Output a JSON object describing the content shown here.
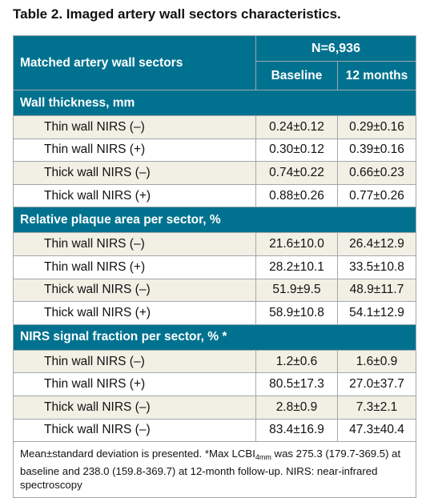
{
  "title": "Table 2. Imaged artery wall sectors characteristics.",
  "header": {
    "row_label": "Matched artery wall sectors",
    "n_label": "N=6,936",
    "col_baseline": "Baseline",
    "col_12m": "12 months"
  },
  "sections": [
    {
      "title": "Wall thickness, mm",
      "rows": [
        {
          "label": "Thin wall NIRS (–)",
          "baseline": "0.24±0.12",
          "m12": "0.29±0.16"
        },
        {
          "label": "Thin wall NIRS (+)",
          "baseline": "0.30±0.12",
          "m12": "0.39±0.16"
        },
        {
          "label": "Thick wall NIRS (–)",
          "baseline": "0.74±0.22",
          "m12": "0.66±0.23"
        },
        {
          "label": "Thick wall NIRS (+)",
          "baseline": "0.88±0.26",
          "m12": "0.77±0.26"
        }
      ]
    },
    {
      "title": "Relative plaque area per sector, %",
      "rows": [
        {
          "label": "Thin wall NIRS (–)",
          "baseline": "21.6±10.0",
          "m12": "26.4±12.9"
        },
        {
          "label": "Thin wall NIRS (+)",
          "baseline": "28.2±10.1",
          "m12": "33.5±10.8"
        },
        {
          "label": "Thick wall NIRS (–)",
          "baseline": "51.9±9.5",
          "m12": "48.9±11.7"
        },
        {
          "label": "Thick wall NIRS (+)",
          "baseline": "58.9±10.8",
          "m12": "54.1±12.9"
        }
      ]
    },
    {
      "title": "NIRS signal fraction per sector, % *",
      "rows": [
        {
          "label": "Thin wall NIRS (–)",
          "baseline": "1.2±0.6",
          "m12": "1.6±0.9"
        },
        {
          "label": "Thin wall NIRS (+)",
          "baseline": "80.5±17.3",
          "m12": "27.0±37.7"
        },
        {
          "label": "Thick wall NIRS (–)",
          "baseline": "2.8±0.9",
          "m12": "7.3±2.1"
        },
        {
          "label": "Thick wall NIRS (–)",
          "baseline": "83.4±16.9",
          "m12": "47.3±40.4"
        }
      ]
    }
  ],
  "footnote": {
    "part1": "Mean±standard deviation is presented. *Max LCBI",
    "sub": "4mm",
    "part2": " was 275.3 (179.7-369.5) at baseline and 238.0 (159.8-369.7) at 12-month follow-up. NIRS: near-infrared spectroscopy"
  }
}
